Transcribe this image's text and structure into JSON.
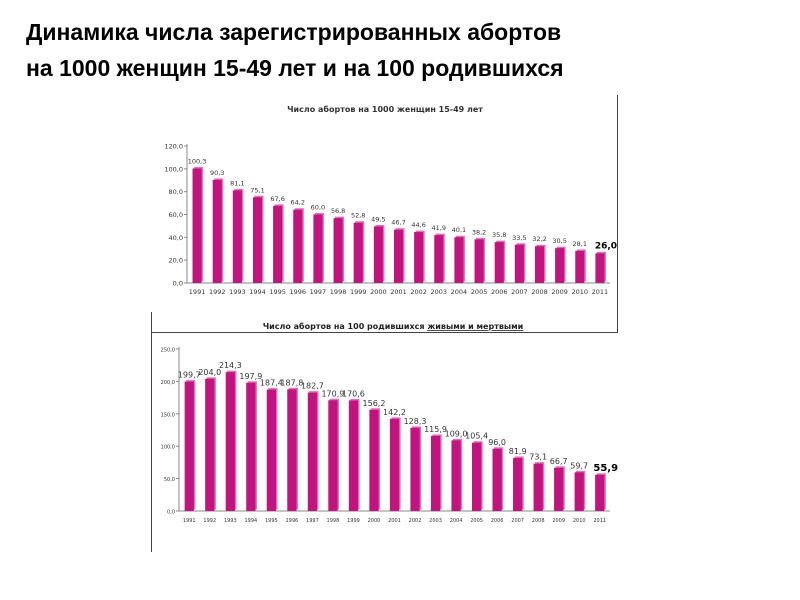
{
  "slide": {
    "title_line1": "Динамика числа зарегистрированных абортов",
    "title_line2": "на 1000 женщин 15-49 лет и на 100 родившихся"
  },
  "colors": {
    "bar": "#c0147e",
    "bar_highlight": "#e070b8",
    "axis": "#888888",
    "text": "#333333"
  },
  "chart_data": [
    {
      "type": "bar",
      "title": "Число абортов на 1000 женщин 15-49 лет",
      "categories": [
        "1991",
        "1992",
        "1993",
        "1994",
        "1995",
        "1996",
        "1997",
        "1998",
        "1999",
        "2000",
        "2001",
        "2002",
        "2003",
        "2004",
        "2005",
        "2006",
        "2007",
        "2008",
        "2009",
        "2010",
        "2011"
      ],
      "values": [
        100.3,
        90.3,
        81.1,
        75.1,
        67.6,
        64.2,
        60.0,
        56.8,
        52.8,
        49.5,
        46.7,
        44.6,
        41.9,
        40.1,
        38.2,
        35.8,
        33.5,
        32.2,
        30.5,
        28.1,
        26.0
      ],
      "value_labels": [
        "100,3",
        "90,3",
        "81,1",
        "75,1",
        "67,6",
        "64,2",
        "60,0",
        "56,8",
        "52,8",
        "49,5",
        "46,7",
        "44,6",
        "41,9",
        "40,1",
        "38,2",
        "35,8",
        "33,5",
        "32,2",
        "30,5",
        "28,1",
        "26,0"
      ],
      "yticks": [
        "0,0",
        "20,0",
        "40,0",
        "60,0",
        "80,0",
        "100,0",
        "120,0"
      ],
      "ylim": [
        0,
        120
      ],
      "grid": false,
      "emphasized_last_label": true
    },
    {
      "type": "bar",
      "title_prefix": "Число абортов на 100 родившихся ",
      "title_emphasis": "живыми и мертвыми",
      "categories": [
        "1991",
        "1992",
        "1993",
        "1994",
        "1995",
        "1996",
        "1997",
        "1998",
        "1999",
        "2000",
        "2001",
        "2002",
        "2003",
        "2004",
        "2005",
        "2006",
        "2007",
        "2008",
        "2009",
        "2010",
        "2011"
      ],
      "values": [
        199.7,
        204.0,
        214.3,
        197.9,
        187.4,
        187.8,
        182.7,
        170.9,
        170.6,
        156.2,
        142.2,
        128.3,
        115.9,
        109.0,
        105.4,
        96.0,
        81.9,
        73.1,
        66.7,
        59.7,
        55.9
      ],
      "value_labels": [
        "199,7",
        "204,0",
        "214,3",
        "197,9",
        "187,4",
        "187,8",
        "182,7",
        "170,9",
        "170,6",
        "156,2",
        "142,2",
        "128,3",
        "115,9",
        "109,0",
        "105,4",
        "96,0",
        "81,9",
        "73,1",
        "66,7",
        "59,7",
        "55,9"
      ],
      "yticks": [
        "0,0",
        "50,0",
        "100,0",
        "150,0",
        "200,0",
        "250,0"
      ],
      "ylim": [
        0,
        250
      ],
      "grid": false,
      "emphasized_last_label": true
    }
  ]
}
